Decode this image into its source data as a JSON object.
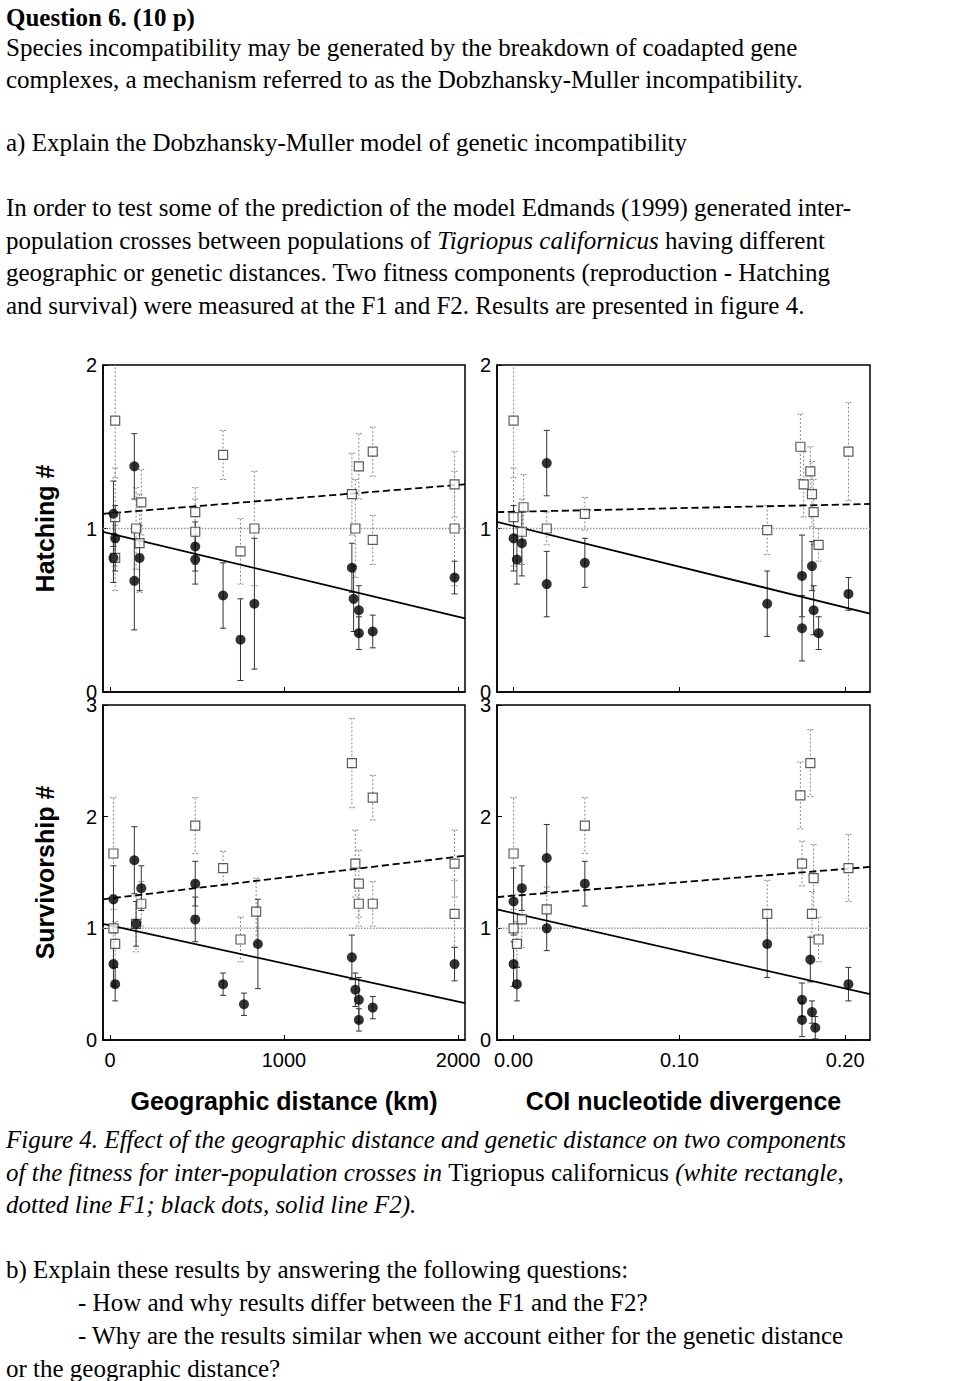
{
  "title": "Question 6. (10 p)",
  "intro": [
    "Species incompatibility may be generated by the breakdown of coadapted gene",
    "complexes, a mechanism referred to as the Dobzhansky-Muller incompatibility."
  ],
  "part_a": "a) Explain the Dobzhansky-Muller model of genetic incompatibility",
  "methods": [
    "In order to test some of the prediction of the model Edmands (1999) generated inter-",
    "population crosses between populations of Tigriopus californicus having different",
    "geographic or genetic distances. Two fitness components (reproduction - Hatching",
    "and survival) were measured at the F1 and F2. Results are presented in figure 4."
  ],
  "caption": [
    "Figure 4. Effect of the geographic distance and genetic distance on two components",
    "of the fitness for inter-population crosses in Tigriopus californicus (white rectangle,",
    "dotted line F1; black dots, solid line F2)."
  ],
  "part_b": [
    "b) Explain these results by answering the following questions:",
    "- How and why results differ between the F1 and the F2?",
    "- Why are the results similar when we account either for the genetic distance",
    "or the geographic distance?"
  ],
  "italic_terms": [
    "Tigriopus californicus"
  ],
  "chart_data": [
    {
      "type": "scatter",
      "y_label": "Hatching #",
      "xlim": [
        -40,
        2040
      ],
      "xticks": [
        0,
        1000,
        2000
      ],
      "ylim": [
        0,
        2
      ],
      "yticks": [
        0,
        1,
        2
      ],
      "tick_labels": "y",
      "reference_line": {
        "value": 1,
        "line_style": "dotted"
      },
      "series": [
        {
          "name": "F1",
          "marker": "square",
          "color": "#ffffff",
          "x": [
            30,
            30,
            30,
            150,
            180,
            170,
            490,
            490,
            650,
            750,
            830,
            1390,
            1410,
            1430,
            1510,
            1510,
            1980,
            1980
          ],
          "values": [
            1.66,
            1.07,
            0.82,
            1.0,
            1.16,
            0.91,
            1.1,
            0.98,
            1.45,
            0.86,
            1.0,
            1.21,
            1.0,
            1.38,
            1.47,
            0.93,
            1.27,
            1.0
          ],
          "errors": [
            0.35,
            0.3,
            0.2,
            0.25,
            0.2,
            0.3,
            0.15,
            0.2,
            0.15,
            0.2,
            0.35,
            0.25,
            0.3,
            0.2,
            0.15,
            0.15,
            0.2,
            0.35
          ],
          "fit": {
            "x": [
              -40,
              2040
            ],
            "y": [
              1.09,
              1.27
            ],
            "line_style": "dashed"
          }
        },
        {
          "name": "F2",
          "marker": "circle",
          "color": "#000000",
          "x": [
            20,
            20,
            30,
            140,
            140,
            170,
            490,
            490,
            650,
            750,
            830,
            1390,
            1400,
            1430,
            1430,
            1510,
            1980
          ],
          "values": [
            1.09,
            0.82,
            0.94,
            1.38,
            0.68,
            0.82,
            0.89,
            0.81,
            0.59,
            0.32,
            0.54,
            0.76,
            0.57,
            0.5,
            0.36,
            0.37,
            0.7
          ],
          "errors": [
            0.2,
            0.15,
            0.2,
            0.2,
            0.3,
            0.2,
            0.15,
            0.15,
            0.2,
            0.25,
            0.4,
            0.15,
            0.2,
            0.15,
            0.1,
            0.1,
            0.1
          ],
          "fit": {
            "x": [
              -40,
              2040
            ],
            "y": [
              0.98,
              0.45
            ],
            "line_style": "solid"
          }
        }
      ]
    },
    {
      "type": "scatter",
      "xlim": [
        -0.01,
        0.215
      ],
      "xticks": [
        {
          "value": 0,
          "label": "0.00"
        },
        {
          "value": 0.1,
          "label": "0.10"
        },
        {
          "value": 0.2,
          "label": "0.20"
        }
      ],
      "ylim": [
        0,
        2
      ],
      "yticks": [
        0,
        1,
        2
      ],
      "tick_labels": "y",
      "reference_line": {
        "value": 1,
        "line_style": "dotted"
      },
      "series": [
        {
          "name": "F1",
          "marker": "square",
          "color": "#ffffff",
          "x": [
            0.0,
            0.0,
            0.005,
            0.006,
            0.02,
            0.043,
            0.153,
            0.173,
            0.175,
            0.179,
            0.18,
            0.181,
            0.184,
            0.202
          ],
          "values": [
            1.66,
            1.07,
            0.98,
            1.13,
            1.0,
            1.09,
            0.99,
            1.5,
            1.27,
            1.35,
            1.21,
            1.1,
            0.9,
            1.47
          ],
          "errors": [
            0.35,
            0.3,
            0.2,
            0.2,
            0.1,
            0.1,
            0.15,
            0.2,
            0.2,
            0.15,
            0.2,
            0.2,
            0.1,
            0.3
          ],
          "fit": {
            "x": [
              -0.01,
              0.215
            ],
            "y": [
              1.1,
              1.15
            ],
            "line_style": "dashed"
          }
        },
        {
          "name": "F2",
          "marker": "circle",
          "color": "#000000",
          "x": [
            0.0,
            0.002,
            0.005,
            0.02,
            0.02,
            0.043,
            0.153,
            0.174,
            0.174,
            0.18,
            0.181,
            0.184,
            0.202
          ],
          "values": [
            0.94,
            0.81,
            0.91,
            1.4,
            0.66,
            0.79,
            0.54,
            0.71,
            0.39,
            0.77,
            0.5,
            0.36,
            0.6
          ],
          "errors": [
            0.2,
            0.15,
            0.2,
            0.2,
            0.2,
            0.15,
            0.2,
            0.25,
            0.2,
            0.15,
            0.15,
            0.1,
            0.1
          ],
          "fit": {
            "x": [
              -0.01,
              0.215
            ],
            "y": [
              1.04,
              0.48
            ],
            "line_style": "solid"
          }
        }
      ]
    },
    {
      "type": "scatter",
      "x_label": "Geographic distance (km)",
      "y_label": "Survivorship #",
      "xlim": [
        -40,
        2040
      ],
      "xticks": [
        0,
        1000,
        2000
      ],
      "ylim": [
        0,
        3
      ],
      "yticks": [
        0,
        1,
        2,
        3
      ],
      "reference_line": {
        "value": 1,
        "line_style": "dotted"
      },
      "series": [
        {
          "name": "F1",
          "marker": "square",
          "color": "#ffffff",
          "x": [
            20,
            20,
            30,
            150,
            180,
            490,
            650,
            750,
            840,
            1390,
            1410,
            1430,
            1430,
            1510,
            1510,
            1980,
            1980
          ],
          "values": [
            1.67,
            1.0,
            0.86,
            1.04,
            1.22,
            1.92,
            1.54,
            0.9,
            1.15,
            2.48,
            1.58,
            1.4,
            1.22,
            2.17,
            1.22,
            1.58,
            1.13
          ],
          "errors": [
            0.5,
            0.3,
            0.2,
            0.25,
            0.2,
            0.25,
            0.15,
            0.2,
            0.3,
            0.4,
            0.3,
            0.3,
            0.2,
            0.2,
            0.2,
            0.3,
            0.3
          ],
          "fit": {
            "x": [
              -40,
              2040
            ],
            "y": [
              1.26,
              1.65
            ],
            "line_style": "dashed"
          }
        },
        {
          "name": "F2",
          "marker": "circle",
          "color": "#000000",
          "x": [
            20,
            20,
            30,
            140,
            150,
            180,
            490,
            490,
            650,
            770,
            850,
            1390,
            1410,
            1430,
            1430,
            1510,
            1980
          ],
          "values": [
            1.26,
            0.68,
            0.5,
            1.61,
            1.04,
            1.36,
            1.4,
            1.08,
            0.5,
            0.32,
            0.86,
            0.74,
            0.45,
            0.36,
            0.18,
            0.29,
            0.68
          ],
          "errors": [
            0.3,
            0.2,
            0.15,
            0.3,
            0.2,
            0.2,
            0.2,
            0.2,
            0.1,
            0.1,
            0.4,
            0.2,
            0.15,
            0.2,
            0.1,
            0.1,
            0.15
          ],
          "fit": {
            "x": [
              -40,
              2040
            ],
            "y": [
              1.04,
              0.33
            ],
            "line_style": "solid"
          }
        }
      ]
    },
    {
      "type": "scatter",
      "x_label": "COI nucleotide divergence",
      "xlim": [
        -0.01,
        0.215
      ],
      "xticks": [
        {
          "value": 0,
          "label": "0.00"
        },
        {
          "value": 0.1,
          "label": "0.10"
        },
        {
          "value": 0.2,
          "label": "0.20"
        }
      ],
      "ylim": [
        0,
        3
      ],
      "yticks": [
        0,
        1,
        2,
        3
      ],
      "reference_line": {
        "value": 1,
        "line_style": "dotted"
      },
      "series": [
        {
          "name": "F1",
          "marker": "square",
          "color": "#ffffff",
          "x": [
            0.0,
            0.0,
            0.002,
            0.005,
            0.02,
            0.043,
            0.153,
            0.173,
            0.174,
            0.179,
            0.18,
            0.181,
            0.184,
            0.202
          ],
          "values": [
            1.67,
            1.0,
            0.86,
            1.08,
            1.17,
            1.92,
            1.13,
            2.19,
            1.58,
            2.48,
            1.13,
            1.45,
            0.9,
            1.54
          ],
          "errors": [
            0.5,
            0.3,
            0.2,
            0.25,
            0.2,
            0.25,
            0.3,
            0.3,
            0.2,
            0.3,
            0.2,
            0.3,
            0.2,
            0.3
          ],
          "fit": {
            "x": [
              -0.01,
              0.215
            ],
            "y": [
              1.28,
              1.55
            ],
            "line_style": "dashed"
          }
        },
        {
          "name": "F2",
          "marker": "circle",
          "color": "#000000",
          "x": [
            0.0,
            0.0,
            0.002,
            0.005,
            0.02,
            0.02,
            0.043,
            0.153,
            0.174,
            0.174,
            0.179,
            0.18,
            0.182,
            0.202
          ],
          "values": [
            1.24,
            0.68,
            0.5,
            1.36,
            1.63,
            1.0,
            1.4,
            0.86,
            0.36,
            0.18,
            0.72,
            0.25,
            0.11,
            0.5
          ],
          "errors": [
            0.3,
            0.2,
            0.15,
            0.2,
            0.3,
            0.2,
            0.2,
            0.3,
            0.15,
            0.15,
            0.2,
            0.1,
            0.1,
            0.15
          ],
          "fit": {
            "x": [
              -0.01,
              0.215
            ],
            "y": [
              1.17,
              0.41
            ],
            "line_style": "solid"
          }
        }
      ]
    }
  ]
}
